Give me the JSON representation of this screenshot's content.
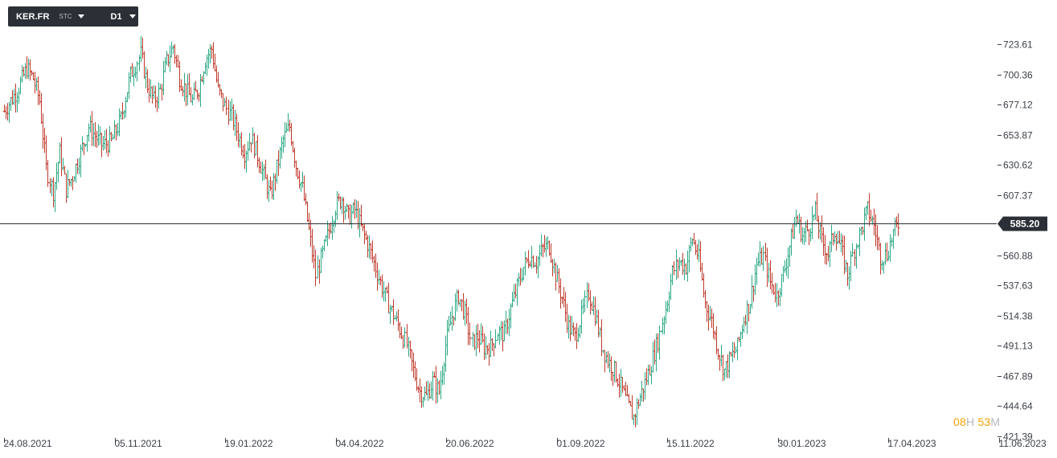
{
  "toolbar": {
    "symbol": "KER.FR",
    "exchange": "STC",
    "timeframe": "D1"
  },
  "timer": {
    "hours": "08",
    "hours_unit": "H",
    "minutes": "53",
    "minutes_unit": "M"
  },
  "current_price": {
    "label": "585.20",
    "value": 585.2
  },
  "colors": {
    "up": "#2aa884",
    "down": "#c0392b",
    "axis": "#3a3f47",
    "price_line": "#2b2f36",
    "tag": "#2b2f36"
  },
  "chart_data": {
    "type": "ohlc",
    "title": "",
    "xlabel": "",
    "ylabel": "",
    "ylim": [
      421.39,
      735
    ],
    "y_ticks": [
      "723.61",
      "700.36",
      "677.12",
      "653.87",
      "630.62",
      "607.37",
      "560.88",
      "537.63",
      "514.38",
      "491.13",
      "467.89",
      "444.64",
      "421.39"
    ],
    "x_ticks": [
      "24.08.2021",
      "05.11.2021",
      "19.01.2022",
      "04.04.2022",
      "20.06.2022",
      "01.09.2022",
      "15.11.2022",
      "30.01.2023",
      "17.04.2023",
      "11.06.2023"
    ],
    "keypoints": [
      [
        0,
        672
      ],
      [
        8,
        688
      ],
      [
        14,
        705
      ],
      [
        18,
        697
      ],
      [
        22,
        680
      ],
      [
        26,
        628
      ],
      [
        30,
        610
      ],
      [
        34,
        640
      ],
      [
        38,
        612
      ],
      [
        42,
        622
      ],
      [
        47,
        640
      ],
      [
        52,
        660
      ],
      [
        60,
        646
      ],
      [
        66,
        648
      ],
      [
        72,
        666
      ],
      [
        78,
        700
      ],
      [
        84,
        716
      ],
      [
        88,
        692
      ],
      [
        92,
        680
      ],
      [
        96,
        688
      ],
      [
        100,
        710
      ],
      [
        104,
        722
      ],
      [
        108,
        698
      ],
      [
        112,
        688
      ],
      [
        116,
        680
      ],
      [
        120,
        690
      ],
      [
        124,
        712
      ],
      [
        128,
        720
      ],
      [
        132,
        688
      ],
      [
        136,
        676
      ],
      [
        140,
        668
      ],
      [
        144,
        654
      ],
      [
        148,
        640
      ],
      [
        152,
        652
      ],
      [
        156,
        638
      ],
      [
        160,
        622
      ],
      [
        164,
        606
      ],
      [
        168,
        628
      ],
      [
        172,
        650
      ],
      [
        176,
        660
      ],
      [
        180,
        630
      ],
      [
        184,
        612
      ],
      [
        188,
        580
      ],
      [
        192,
        545
      ],
      [
        196,
        562
      ],
      [
        200,
        580
      ],
      [
        204,
        598
      ],
      [
        208,
        605
      ],
      [
        212,
        590
      ],
      [
        216,
        596
      ],
      [
        220,
        582
      ],
      [
        224,
        570
      ],
      [
        228,
        555
      ],
      [
        232,
        540
      ],
      [
        236,
        526
      ],
      [
        240,
        515
      ],
      [
        244,
        504
      ],
      [
        248,
        492
      ],
      [
        252,
        472
      ],
      [
        256,
        456
      ],
      [
        260,
        452
      ],
      [
        264,
        464
      ],
      [
        268,
        456
      ],
      [
        272,
        492
      ],
      [
        276,
        514
      ],
      [
        280,
        530
      ],
      [
        284,
        516
      ],
      [
        288,
        492
      ],
      [
        292,
        498
      ],
      [
        296,
        490
      ],
      [
        300,
        490
      ],
      [
        304,
        502
      ],
      [
        308,
        500
      ],
      [
        312,
        520
      ],
      [
        316,
        536
      ],
      [
        320,
        552
      ],
      [
        324,
        560
      ],
      [
        328,
        556
      ],
      [
        332,
        566
      ],
      [
        336,
        568
      ],
      [
        340,
        546
      ],
      [
        344,
        528
      ],
      [
        348,
        506
      ],
      [
        352,
        498
      ],
      [
        356,
        514
      ],
      [
        360,
        532
      ],
      [
        364,
        516
      ],
      [
        368,
        492
      ],
      [
        372,
        480
      ],
      [
        376,
        472
      ],
      [
        380,
        460
      ],
      [
        384,
        446
      ],
      [
        388,
        436
      ],
      [
        392,
        452
      ],
      [
        396,
        466
      ],
      [
        400,
        482
      ],
      [
        404,
        500
      ],
      [
        408,
        520
      ],
      [
        412,
        548
      ],
      [
        416,
        556
      ],
      [
        420,
        552
      ],
      [
        424,
        574
      ],
      [
        428,
        558
      ],
      [
        432,
        524
      ],
      [
        436,
        510
      ],
      [
        440,
        488
      ],
      [
        444,
        472
      ],
      [
        448,
        482
      ],
      [
        452,
        490
      ],
      [
        456,
        512
      ],
      [
        460,
        526
      ],
      [
        464,
        554
      ],
      [
        468,
        560
      ],
      [
        472,
        540
      ],
      [
        476,
        530
      ],
      [
        480,
        546
      ],
      [
        484,
        568
      ],
      [
        488,
        590
      ],
      [
        492,
        576
      ],
      [
        496,
        582
      ],
      [
        500,
        594
      ],
      [
        504,
        572
      ],
      [
        508,
        562
      ],
      [
        512,
        580
      ],
      [
        516,
        566
      ],
      [
        520,
        546
      ],
      [
        524,
        566
      ],
      [
        528,
        580
      ],
      [
        532,
        596
      ],
      [
        536,
        584
      ],
      [
        540,
        560
      ],
      [
        544,
        562
      ],
      [
        548,
        578
      ],
      [
        551,
        585
      ]
    ]
  }
}
